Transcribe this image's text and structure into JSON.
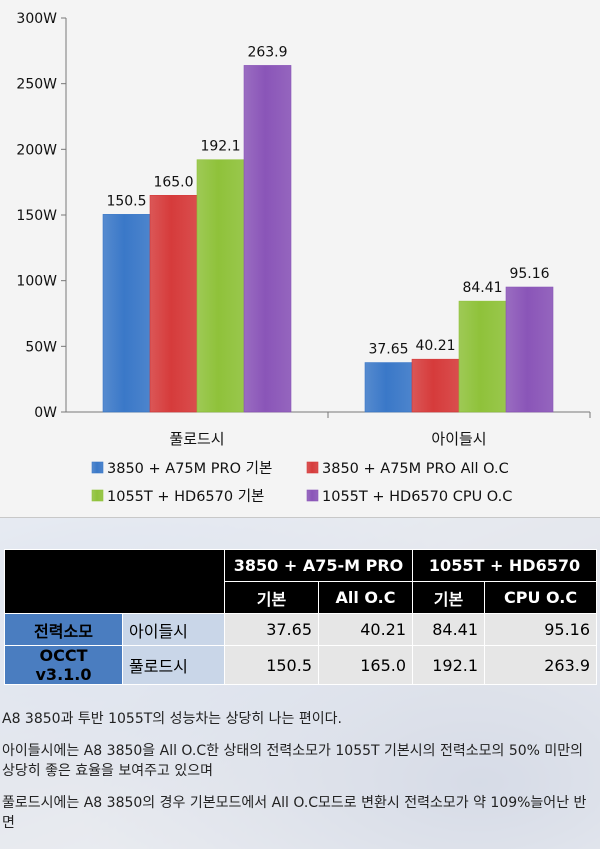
{
  "chart_data": {
    "type": "bar",
    "categories": [
      "풀로드시",
      "아이들시"
    ],
    "series": [
      {
        "name": "3850 + A75M PRO 기본",
        "values": [
          150.5,
          37.65
        ],
        "labels": [
          "150.5",
          "37.65"
        ],
        "color": "#3a78c8"
      },
      {
        "name": "3850 + A75M PRO All O.C",
        "values": [
          165.0,
          40.21
        ],
        "labels": [
          "165.0",
          "40.21"
        ],
        "color": "#d63b3b"
      },
      {
        "name": "1055T + HD6570 기본",
        "values": [
          192.1,
          84.41
        ],
        "labels": [
          "192.1",
          "84.41"
        ],
        "color": "#8fc23a"
      },
      {
        "name": "1055T + HD6570 CPU O.C",
        "values": [
          263.9,
          95.16
        ],
        "labels": [
          "263.9",
          "95.16"
        ],
        "color": "#8a55b8"
      }
    ],
    "yticks": [
      "0W",
      "50W",
      "100W",
      "150W",
      "200W",
      "250W",
      "300W"
    ],
    "ylim": [
      0,
      300
    ],
    "legend_position": "bottom",
    "grid": false
  },
  "table": {
    "headers_top": [
      "3850 + A75-M PRO",
      "1055T + HD6570"
    ],
    "headers_sub": [
      "기본",
      "All O.C",
      "기본",
      "CPU O.C"
    ],
    "rows": [
      {
        "label": "전력소모",
        "sub": "아이들시",
        "values": [
          "37.65",
          "40.21",
          "84.41",
          "95.16"
        ]
      },
      {
        "label": "OCCT v3.1.0",
        "sub": "풀로드시",
        "values": [
          "150.5",
          "165.0",
          "192.1",
          "263.9"
        ]
      }
    ]
  },
  "paragraphs": [
    "A8 3850과 투반 1055T의 성능차는 상당히 나는 편이다.",
    "아이들시에는 A8 3850을 All O.C한 상태의 전력소모가 1055T 기본시의 전력소모의 50% 미만의 상당히 좋은 효율을 보여주고 있으며",
    "풀로드시에는 A8 3850의 경우 기본모드에서 All O.C모드로 변환시 전력소모가 약 109%늘어난 반면"
  ]
}
